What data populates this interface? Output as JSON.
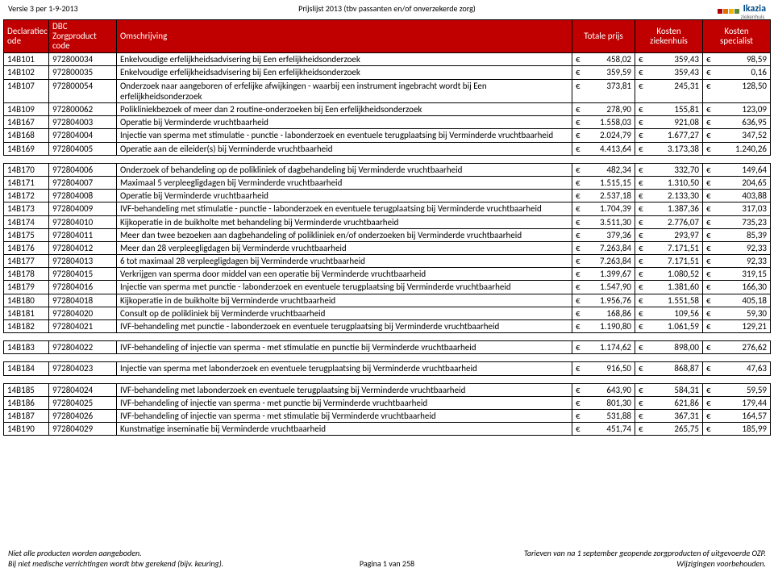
{
  "header": {
    "version": "Versie 3 per 1-9-2013",
    "title": "Prijslijst 2013 (tbv passanten en/of onverzekerde zorg)",
    "logo_name": "Ikazia",
    "logo_sub": "ziekenhuis",
    "logo_colors": [
      "#b30000",
      "#e07000",
      "#f0b400",
      "#5a8a3a"
    ]
  },
  "columns": {
    "decl": "Declaratiec\node",
    "dbc": "DBC\nZorgproduct code",
    "desc": "Omschrijving",
    "price": "Totale prijs",
    "kz": "Kosten\nziekenhuis",
    "ks": "Kosten\nspecialist"
  },
  "rows_a": [
    {
      "decl": "14B101",
      "dbc": "972800034",
      "desc": "Enkelvoudige erfelijkheidsadvisering bij Een erfelijkheidsonderzoek",
      "p": "458,02",
      "kz": "359,43",
      "ks": "98,59"
    },
    {
      "decl": "14B102",
      "dbc": "972800035",
      "desc": "Enkelvoudige erfelijkheidsadvisering bij Een erfelijkheidsonderzoek",
      "p": "359,59",
      "kz": "359,43",
      "ks": "0,16"
    },
    {
      "decl": "14B107",
      "dbc": "972800054",
      "desc": "Onderzoek naar aangeboren of erfelijke afwijkingen - waarbij een instrument ingebracht wordt bij Een erfelijkheidsonderzoek",
      "p": "373,81",
      "kz": "245,31",
      "ks": "128,50"
    },
    {
      "decl": "14B109",
      "dbc": "972800062",
      "desc": "Polikliniekbezoek of meer dan 2 routine-onderzoeken bij Een erfelijkheidsonderzoek",
      "p": "278,90",
      "kz": "155,81",
      "ks": "123,09"
    },
    {
      "decl": "14B167",
      "dbc": "972804003",
      "desc": "Operatie bij Verminderde vruchtbaarheid",
      "p": "1.558,03",
      "kz": "921,08",
      "ks": "636,95"
    },
    {
      "decl": "14B168",
      "dbc": "972804004",
      "desc": "Injectie van sperma met stimulatie - punctie - labonderzoek en eventuele terugplaatsing bij Verminderde vruchtbaarheid",
      "p": "2.024,79",
      "kz": "1.677,27",
      "ks": "347,52"
    },
    {
      "decl": "14B169",
      "dbc": "972804005",
      "desc": "Operatie aan de eileider(s) bij Verminderde vruchtbaarheid",
      "p": "4.413,64",
      "kz": "3.173,38",
      "ks": "1.240,26"
    }
  ],
  "rows_b": [
    {
      "decl": "14B170",
      "dbc": "972804006",
      "desc": "Onderzoek of behandeling op de polikliniek of dagbehandeling bij Verminderde vruchtbaarheid",
      "p": "482,34",
      "kz": "332,70",
      "ks": "149,64"
    },
    {
      "decl": "14B171",
      "dbc": "972804007",
      "desc": "Maximaal 5 verpleegligdagen bij Verminderde vruchtbaarheid",
      "p": "1.515,15",
      "kz": "1.310,50",
      "ks": "204,65"
    },
    {
      "decl": "14B172",
      "dbc": "972804008",
      "desc": "Operatie bij Verminderde vruchtbaarheid",
      "p": "2.537,18",
      "kz": "2.133,30",
      "ks": "403,88"
    },
    {
      "decl": "14B173",
      "dbc": "972804009",
      "desc": "IVF-behandeling met stimulatie - punctie - labonderzoek en eventuele terugplaatsing bij Verminderde vruchtbaarheid",
      "p": "1.704,39",
      "kz": "1.387,36",
      "ks": "317,03"
    },
    {
      "decl": "14B174",
      "dbc": "972804010",
      "desc": "Kijkoperatie in de buikholte met behandeling bij Verminderde vruchtbaarheid",
      "p": "3.511,30",
      "kz": "2.776,07",
      "ks": "735,23"
    },
    {
      "decl": "14B175",
      "dbc": "972804011",
      "desc": "Meer dan twee bezoeken aan dagbehandeling of polikliniek en/of onderzoeken bij Verminderde vruchtbaarheid",
      "p": "379,36",
      "kz": "293,97",
      "ks": "85,39"
    },
    {
      "decl": "14B176",
      "dbc": "972804012",
      "desc": "Meer dan 28 verpleegligdagen bij Verminderde vruchtbaarheid",
      "p": "7.263,84",
      "kz": "7.171,51",
      "ks": "92,33"
    },
    {
      "decl": "14B177",
      "dbc": "972804013",
      "desc": "6 tot maximaal 28 verpleegligdagen bij Verminderde vruchtbaarheid",
      "p": "7.263,84",
      "kz": "7.171,51",
      "ks": "92,33"
    },
    {
      "decl": "14B178",
      "dbc": "972804015",
      "desc": "Verkrijgen van sperma door middel van een operatie bij Verminderde vruchtbaarheid",
      "p": "1.399,67",
      "kz": "1.080,52",
      "ks": "319,15"
    },
    {
      "decl": "14B179",
      "dbc": "972804016",
      "desc": "Injectie van sperma met punctie - labonderzoek en eventuele terugplaatsing bij Verminderde vruchtbaarheid",
      "p": "1.547,90",
      "kz": "1.381,60",
      "ks": "166,30"
    },
    {
      "decl": "14B180",
      "dbc": "972804018",
      "desc": "Kijkoperatie in de buikholte bij Verminderde vruchtbaarheid",
      "p": "1.956,76",
      "kz": "1.551,58",
      "ks": "405,18"
    },
    {
      "decl": "14B181",
      "dbc": "972804020",
      "desc": "Consult op de polikliniek bij Verminderde vruchtbaarheid",
      "p": "168,86",
      "kz": "109,56",
      "ks": "59,30"
    },
    {
      "decl": "14B182",
      "dbc": "972804021",
      "desc": "IVF-behandeling met punctie - labonderzoek en eventuele terugplaatsing bij Verminderde vruchtbaarheid",
      "p": "1.190,80",
      "kz": "1.061,59",
      "ks": "129,21"
    }
  ],
  "rows_c": [
    {
      "decl": "14B183",
      "dbc": "972804022",
      "desc": "IVF-behandeling of injectie van sperma - met stimulatie en punctie bij Verminderde vruchtbaarheid",
      "p": "1.174,62",
      "kz": "898,00",
      "ks": "276,62"
    }
  ],
  "rows_d": [
    {
      "decl": "14B184",
      "dbc": "972804023",
      "desc": "Injectie van sperma met labonderzoek en eventuele terugplaatsing bij Verminderde vruchtbaarheid",
      "p": "916,50",
      "kz": "868,87",
      "ks": "47,63"
    }
  ],
  "rows_e": [
    {
      "decl": "14B185",
      "dbc": "972804024",
      "desc": "IVF-behandeling met labonderzoek en eventuele terugplaatsing bij Verminderde vruchtbaarheid",
      "p": "643,90",
      "kz": "584,31",
      "ks": "59,59"
    },
    {
      "decl": "14B186",
      "dbc": "972804025",
      "desc": "IVF-behandeling of injectie van sperma - met punctie bij Verminderde vruchtbaarheid",
      "p": "801,30",
      "kz": "621,86",
      "ks": "179,44"
    },
    {
      "decl": "14B187",
      "dbc": "972804026",
      "desc": "IVF-behandeling of injectie van sperma - met stimulatie bij Verminderde vruchtbaarheid",
      "p": "531,88",
      "kz": "367,31",
      "ks": "164,57"
    },
    {
      "decl": "14B190",
      "dbc": "972804029",
      "desc": "Kunstmatige inseminatie bij Verminderde vruchtbaarheid",
      "p": "451,74",
      "kz": "265,75",
      "ks": "185,99"
    }
  ],
  "footer": {
    "left1": "Niet alle producten worden aangeboden.",
    "left2": "Bij niet medische verrichtingen wordt btw gerekend (bijv. keuring).",
    "center": "Pagina 1 van 258",
    "right1": "Tarieven van na 1 september geopende zorgproducten of uitgevoerde OZP.",
    "right2": "Wijzigingen voorbehouden."
  },
  "theme": {
    "header_bg": "#c00000",
    "header_fg": "#ffffff",
    "border": "#000000",
    "font_size_body": 11,
    "font_size_header": 10
  }
}
